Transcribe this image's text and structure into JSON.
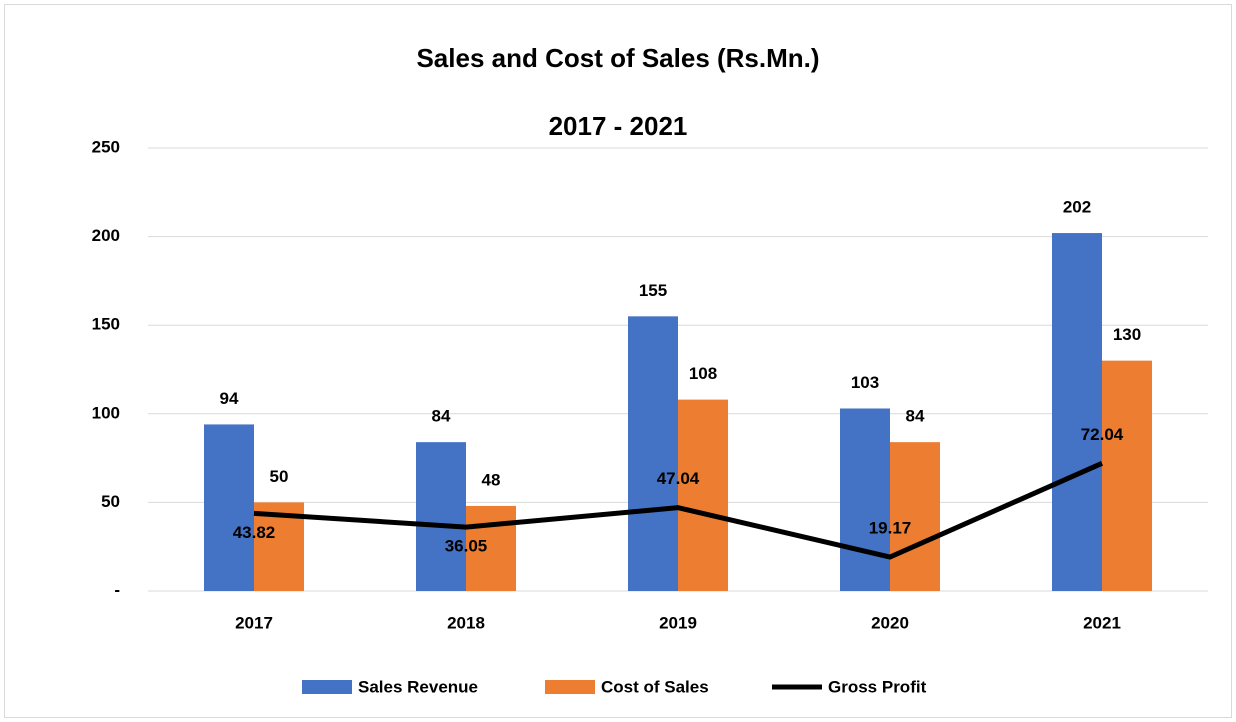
{
  "chart_data": {
    "type": "bar_line",
    "title": "Sales and Cost of Sales (Rs.Mn.)",
    "subtitle": "2017 - 2021",
    "categories": [
      "2017",
      "2018",
      "2019",
      "2020",
      "2021"
    ],
    "series": [
      {
        "name": "Sales Revenue",
        "color": "#4472c4",
        "type": "bar",
        "values": [
          94,
          84,
          155,
          103,
          202
        ]
      },
      {
        "name": "Cost of Sales",
        "color": "#ed7d31",
        "type": "bar",
        "values": [
          50,
          48,
          108,
          84,
          130
        ]
      },
      {
        "name": "Gross Profit",
        "color": "#000000",
        "type": "line",
        "values": [
          43.82,
          36.05,
          47.04,
          19.17,
          72.04
        ]
      }
    ],
    "ylim": [
      0,
      250
    ],
    "yticks": [
      {
        "value": 0,
        "label": "-"
      },
      50,
      100,
      150,
      200,
      250
    ],
    "grid": true,
    "legend": "bottom"
  }
}
